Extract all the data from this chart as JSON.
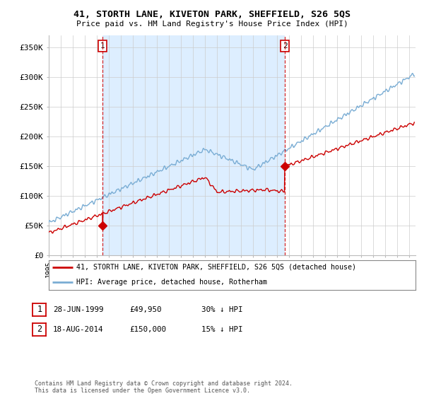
{
  "title_line1": "41, STORTH LANE, KIVETON PARK, SHEFFIELD, S26 5QS",
  "title_line2": "Price paid vs. HM Land Registry's House Price Index (HPI)",
  "ylabel_ticks": [
    "£0",
    "£50K",
    "£100K",
    "£150K",
    "£200K",
    "£250K",
    "£300K",
    "£350K"
  ],
  "ytick_values": [
    0,
    50000,
    100000,
    150000,
    200000,
    250000,
    300000,
    350000
  ],
  "ylim": [
    0,
    370000
  ],
  "xlim_start": 1995.0,
  "xlim_end": 2025.5,
  "sale1_x": 1999.486,
  "sale1_y": 49950,
  "sale2_x": 2014.63,
  "sale2_y": 150000,
  "sale1_date": "28-JUN-1999",
  "sale1_price": "£49,950",
  "sale1_hpi": "30% ↓ HPI",
  "sale2_date": "18-AUG-2014",
  "sale2_price": "£150,000",
  "sale2_hpi": "15% ↓ HPI",
  "line_color_red": "#cc0000",
  "line_color_blue": "#7aadd4",
  "shade_color": "#ddeeff",
  "vline_color": "#cc0000",
  "legend_label_red": "41, STORTH LANE, KIVETON PARK, SHEFFIELD, S26 5QS (detached house)",
  "legend_label_blue": "HPI: Average price, detached house, Rotherham",
  "copyright_text": "Contains HM Land Registry data © Crown copyright and database right 2024.\nThis data is licensed under the Open Government Licence v3.0.",
  "background_color": "#ffffff",
  "grid_color": "#cccccc"
}
